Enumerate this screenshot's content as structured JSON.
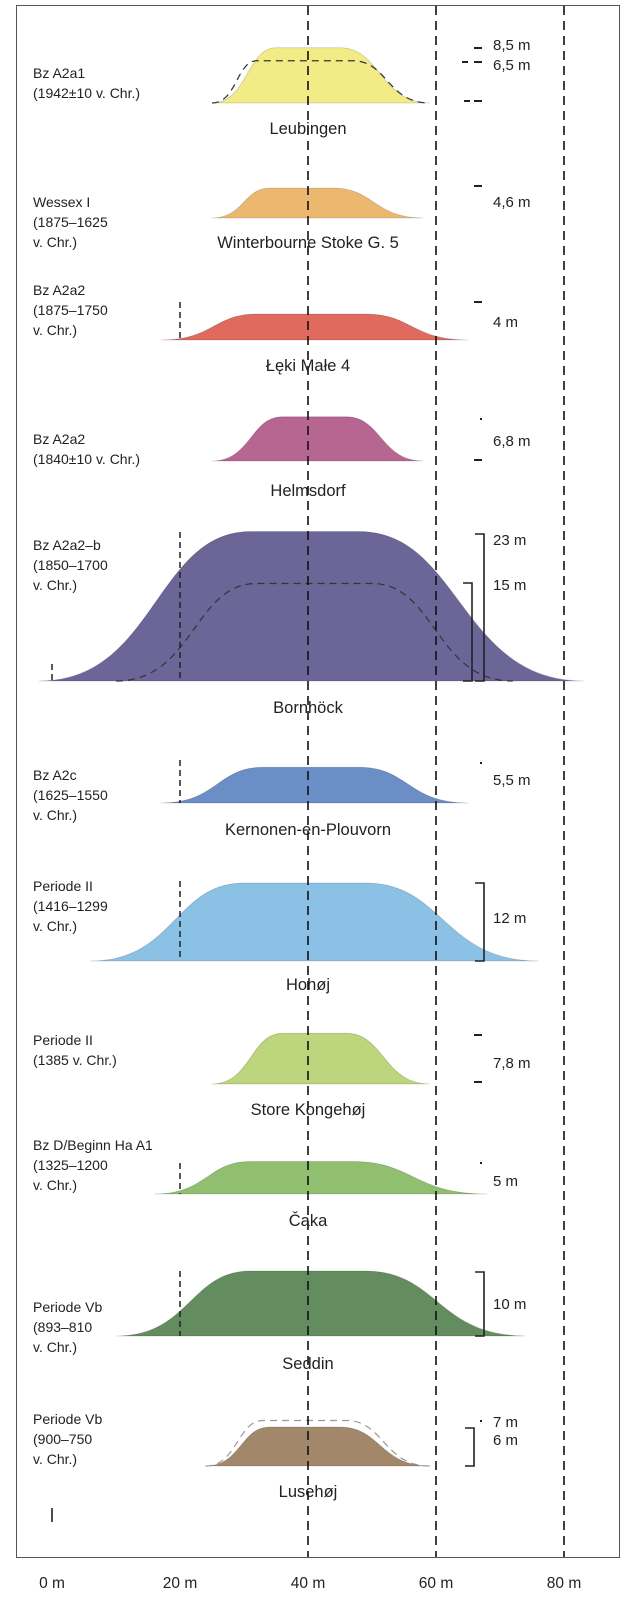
{
  "axis": {
    "unit": "m",
    "min": 0,
    "max": 84,
    "ticks": [
      {
        "value": 0,
        "label": "0 m"
      },
      {
        "value": 20,
        "label": "20 m"
      },
      {
        "value": 40,
        "label": "40 m"
      },
      {
        "value": 60,
        "label": "60 m"
      },
      {
        "value": 80,
        "label": "80 m"
      }
    ],
    "reference_lines_m": [
      40,
      60,
      80
    ]
  },
  "mounds": [
    {
      "site": "Leubingen",
      "period": [
        "Bz A2a1",
        "(1942±10 v. Chr.)"
      ],
      "heights": [
        "8,5 m",
        "6,5 m"
      ],
      "color": "#f3ec86",
      "diameter_m": [
        25,
        59
      ],
      "plateau_m": [
        35,
        45
      ],
      "height_m": 8.5,
      "inner": {
        "diameter_m": [
          25,
          59
        ],
        "plateau_m": [
          32,
          47
        ],
        "height_m": 6.5
      }
    },
    {
      "site": "Winterbourne Stoke G. 5",
      "period": [
        "Wessex I",
        "(1875–1625",
        "v. Chr.)"
      ],
      "heights": [
        "4,6 m"
      ],
      "color": "#ecb870",
      "diameter_m": [
        25,
        58
      ],
      "plateau_m": [
        34,
        44
      ],
      "height_m": 4.6
    },
    {
      "site": "Łęki Małe 4",
      "period": [
        "Bz A2a2",
        "(1875–1750",
        "v. Chr.)"
      ],
      "heights": [
        "4 m"
      ],
      "color": "#df6a5d",
      "diameter_m": [
        17,
        65
      ],
      "plateau_m": [
        32,
        49
      ],
      "height_m": 4
    },
    {
      "site": "Helmsdorf",
      "period": [
        "Bz A2a2",
        "(1840±10 v. Chr.)"
      ],
      "heights": [
        "6,8 m"
      ],
      "color": "#b76591",
      "diameter_m": [
        25,
        58
      ],
      "plateau_m": [
        36,
        46
      ],
      "height_m": 6.8
    },
    {
      "site": "Bornhöck",
      "period": [
        "Bz A2a2–b",
        "(1850–1700",
        "v. Chr.)"
      ],
      "heights": [
        "23 m",
        "15 m"
      ],
      "color": "#6b6697",
      "diameter_m": [
        -2,
        83
      ],
      "plateau_m": [
        31,
        48
      ],
      "height_m": 23,
      "inner": {
        "diameter_m": [
          10,
          72
        ],
        "plateau_m": [
          32,
          50
        ],
        "height_m": 15
      }
    },
    {
      "site": "Kernonen-en-Plouvorn",
      "period": [
        "Bz A2c",
        "(1625–1550",
        "v. Chr.)"
      ],
      "heights": [
        "5,5 m"
      ],
      "color": "#6b8ec7",
      "diameter_m": [
        17,
        65
      ],
      "plateau_m": [
        33,
        48
      ],
      "height_m": 5.5
    },
    {
      "site": "Hohøj",
      "period": [
        "Periode II",
        "(1416–1299",
        "v. Chr.)"
      ],
      "heights": [
        "12 m"
      ],
      "color": "#8cc1e6",
      "diameter_m": [
        6,
        76
      ],
      "plateau_m": [
        30,
        49
      ],
      "height_m": 12
    },
    {
      "site": "Store Kongehøj",
      "period": [
        "Periode II",
        "(1385 v. Chr.)"
      ],
      "heights": [
        "7,8 m"
      ],
      "color": "#bdd57c",
      "diameter_m": [
        25,
        59
      ],
      "plateau_m": [
        36,
        46
      ],
      "height_m": 7.8
    },
    {
      "site": "Čaka",
      "period": [
        "Bz D/Beginn Ha A1",
        "(1325–1200",
        "v. Chr.)"
      ],
      "heights": [
        "5 m"
      ],
      "color": "#8fbf6f",
      "diameter_m": [
        16,
        68
      ],
      "plateau_m": [
        31,
        47
      ],
      "height_m": 5
    },
    {
      "site": "Seddin",
      "period": [
        "Periode Vb",
        "(893–810",
        "v. Chr.)"
      ],
      "heights": [
        "10 m"
      ],
      "color": "#638d5e",
      "diameter_m": [
        10,
        74
      ],
      "plateau_m": [
        31,
        49
      ],
      "height_m": 10
    },
    {
      "site": "Lusehøj",
      "period": [
        "Periode Vb",
        "(900–750",
        "v. Chr.)"
      ],
      "heights": [
        "7 m",
        "6 m"
      ],
      "color": "#a3876a",
      "diameter_m": [
        24,
        59
      ],
      "plateau_m": [
        34,
        45
      ],
      "height_m": 6,
      "inner": {
        "diameter_m": [
          24,
          59
        ],
        "plateau_m": [
          33,
          46
        ],
        "height_m": 7
      }
    }
  ]
}
